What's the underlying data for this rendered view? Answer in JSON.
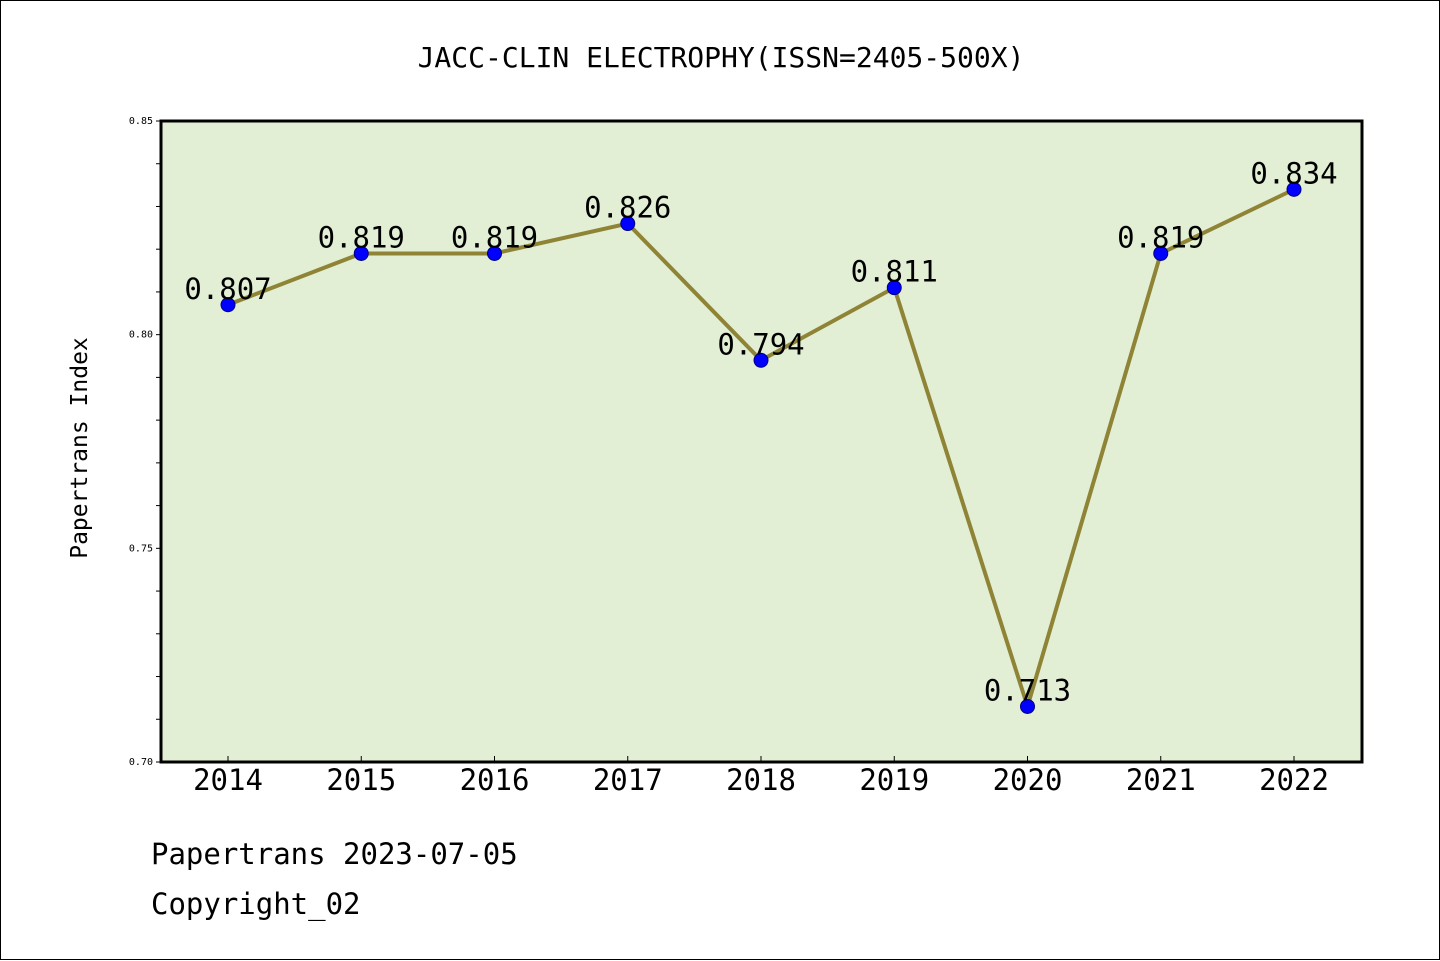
{
  "chart_data": {
    "type": "line",
    "title": "JACC-CLIN ELECTROPHY(ISSN=2405-500X)",
    "xlabel": "",
    "ylabel": "Papertrans Index",
    "categories": [
      "2014",
      "2015",
      "2016",
      "2017",
      "2018",
      "2019",
      "2020",
      "2021",
      "2022"
    ],
    "series": [
      {
        "values": [
          0.807,
          0.819,
          0.819,
          0.826,
          0.794,
          0.811,
          0.713,
          0.819,
          0.834
        ],
        "labels": [
          "0.807",
          "0.819",
          "0.819",
          "0.826",
          "0.794",
          "0.811",
          "0.713",
          "0.819",
          "0.834"
        ]
      }
    ],
    "ylim": [
      0.7,
      0.85
    ],
    "yticks": [
      "0.70",
      "0.75",
      "0.80",
      "0.85"
    ],
    "grid": false,
    "colors": {
      "plot_background": "#e2efd5",
      "line": "#8f8436",
      "marker": "#0000ff"
    }
  },
  "footer": {
    "line1": "Papertrans 2023-07-05",
    "line2": "Copyright_02"
  }
}
